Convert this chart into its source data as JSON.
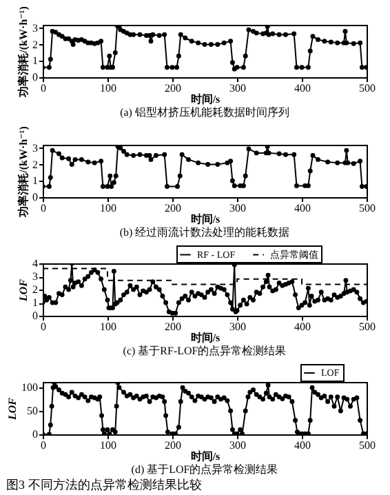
{
  "chart_data": [
    {
      "type": "line",
      "title": "(a) 铝型材挤压机能耗数据时间序列",
      "xlabel": "时间/s",
      "ylabel": "功率消耗/(kW·h⁻¹)",
      "xlim": [
        0,
        500
      ],
      "xticks": [
        0,
        100,
        200,
        300,
        400,
        500
      ],
      "ylim": [
        0,
        3.2
      ],
      "yticks": [
        0,
        1,
        2,
        3
      ],
      "marker": "circle",
      "color": "#000000",
      "x": [
        0,
        10,
        12,
        15,
        20,
        25,
        30,
        35,
        40,
        45,
        47,
        50,
        55,
        60,
        65,
        70,
        75,
        80,
        85,
        90,
        93,
        100,
        103,
        105,
        108,
        112,
        115,
        118,
        120,
        125,
        130,
        135,
        140,
        150,
        160,
        165,
        167,
        170,
        180,
        188,
        192,
        200,
        207,
        210,
        213,
        220,
        230,
        240,
        250,
        260,
        270,
        280,
        290,
        293,
        296,
        300,
        310,
        313,
        318,
        325,
        330,
        340,
        345,
        347,
        349,
        355,
        365,
        375,
        388,
        392,
        400,
        410,
        413,
        417,
        425,
        435,
        445,
        455,
        465,
        467,
        469,
        480,
        490,
        493,
        500
      ],
      "values": [
        0.6,
        0.6,
        1.1,
        2.8,
        2.75,
        2.6,
        2.5,
        2.35,
        2.35,
        2.2,
        2.0,
        2.3,
        2.25,
        2.3,
        2.2,
        2.1,
        2.1,
        2.05,
        2.1,
        2.2,
        0.6,
        0.6,
        1.3,
        0.6,
        0.6,
        1.5,
        3.15,
        3.1,
        2.9,
        2.8,
        2.7,
        2.6,
        2.6,
        2.6,
        2.55,
        2.55,
        2.2,
        2.6,
        2.55,
        2.6,
        0.6,
        0.6,
        0.6,
        1.3,
        2.6,
        2.4,
        2.2,
        2.1,
        2.0,
        2.0,
        2.0,
        2.1,
        2.2,
        0.9,
        0.5,
        0.6,
        0.6,
        1.3,
        2.9,
        2.8,
        2.7,
        2.65,
        2.7,
        3.1,
        2.6,
        2.65,
        2.6,
        2.6,
        2.65,
        0.6,
        0.6,
        0.6,
        1.6,
        2.5,
        2.3,
        2.2,
        2.15,
        2.1,
        2.1,
        2.8,
        2.1,
        2.05,
        2.1,
        0.6,
        0.6
      ]
    },
    {
      "type": "line",
      "title": "(b) 经过雨流计数法处理的能耗数据",
      "xlabel": "时间/s",
      "ylabel": "功率消耗/(kW·h⁻¹)",
      "xlim": [
        0,
        500
      ],
      "xticks": [
        0,
        100,
        200,
        300,
        400,
        500
      ],
      "ylim": [
        0,
        3.2
      ],
      "yticks": [
        0,
        1,
        2,
        3
      ],
      "marker": "circle",
      "color": "#000000",
      "x": [
        0,
        10,
        12,
        15,
        25,
        30,
        40,
        45,
        50,
        60,
        70,
        80,
        90,
        93,
        100,
        104,
        106,
        110,
        113,
        116,
        120,
        125,
        130,
        140,
        150,
        160,
        165,
        167,
        175,
        188,
        192,
        208,
        212,
        215,
        225,
        240,
        255,
        270,
        285,
        290,
        293,
        296,
        305,
        310,
        313,
        318,
        330,
        345,
        347,
        349,
        365,
        375,
        388,
        392,
        405,
        410,
        413,
        417,
        425,
        440,
        455,
        467,
        469,
        471,
        480,
        490,
        493,
        500
      ],
      "values": [
        0.65,
        0.65,
        1.2,
        2.85,
        2.65,
        2.4,
        2.35,
        2.0,
        2.3,
        2.3,
        2.15,
        2.1,
        2.2,
        0.65,
        0.65,
        1.3,
        0.65,
        0.9,
        1.3,
        3.1,
        3.0,
        2.8,
        2.6,
        2.55,
        2.6,
        2.55,
        2.55,
        2.3,
        2.55,
        2.6,
        0.65,
        0.65,
        1.3,
        2.6,
        2.3,
        2.1,
        2.0,
        2.0,
        2.1,
        2.2,
        1.0,
        0.7,
        0.7,
        0.7,
        1.3,
        2.95,
        2.7,
        2.7,
        3.1,
        2.7,
        2.65,
        2.6,
        2.6,
        0.7,
        0.7,
        0.7,
        1.6,
        2.55,
        2.3,
        2.15,
        2.1,
        2.1,
        2.85,
        2.1,
        2.05,
        2.2,
        0.65,
        0.65
      ]
    },
    {
      "type": "line",
      "title": "(c) 基于RF-LOF的点异常检测结果",
      "xlabel": "时间/s",
      "ylabel": "LOF",
      "xlim": [
        0,
        500
      ],
      "xticks": [
        0,
        100,
        200,
        300,
        400,
        500
      ],
      "ylim": [
        0,
        4
      ],
      "yticks": [
        0,
        1,
        2,
        3,
        4
      ],
      "legend": "top right",
      "series": [
        {
          "name": "RF - LOF",
          "color": "#000000",
          "marker": "circle",
          "x": [
            0,
            3,
            6,
            10,
            15,
            20,
            25,
            30,
            35,
            40,
            43,
            45,
            47,
            50,
            55,
            60,
            65,
            70,
            75,
            80,
            85,
            90,
            95,
            100,
            102,
            105,
            108,
            110,
            112,
            115,
            120,
            125,
            130,
            135,
            140,
            145,
            150,
            155,
            160,
            165,
            170,
            175,
            180,
            185,
            190,
            195,
            200,
            205,
            210,
            215,
            220,
            225,
            230,
            235,
            240,
            245,
            250,
            255,
            260,
            265,
            270,
            275,
            280,
            285,
            290,
            293,
            296,
            298,
            300,
            305,
            310,
            315,
            320,
            325,
            330,
            335,
            340,
            345,
            348,
            350,
            355,
            360,
            365,
            370,
            375,
            380,
            385,
            390,
            395,
            400,
            405,
            410,
            412,
            415,
            420,
            425,
            430,
            435,
            440,
            445,
            450,
            455,
            460,
            465,
            468,
            470,
            475,
            480,
            485,
            490,
            495,
            500
          ],
          "values": [
            1.0,
            1.5,
            1.2,
            1.4,
            1.0,
            1.0,
            1.7,
            1.6,
            2.2,
            2.0,
            2.7,
            4.0,
            2.2,
            2.5,
            2.6,
            2.3,
            2.8,
            3.0,
            3.3,
            3.5,
            3.3,
            2.8,
            2.0,
            1.2,
            0.6,
            0.6,
            0.6,
            3.4,
            0.9,
            1.0,
            1.2,
            1.6,
            1.8,
            2.3,
            2.0,
            2.2,
            1.6,
            1.9,
            1.8,
            2.0,
            2.6,
            2.2,
            2.0,
            1.5,
            1.0,
            0.3,
            0.2,
            0.2,
            1.0,
            1.3,
            1.5,
            1.2,
            1.8,
            1.5,
            1.7,
            1.6,
            1.4,
            1.8,
            2.0,
            1.7,
            2.2,
            2.1,
            2.0,
            1.6,
            1.0,
            0.5,
            3.9,
            0.3,
            0.4,
            0.8,
            1.2,
            0.9,
            1.4,
            1.2,
            1.8,
            1.7,
            2.2,
            2.6,
            3.1,
            2.2,
            1.9,
            2.0,
            2.5,
            2.3,
            2.4,
            2.5,
            2.6,
            1.6,
            0.6,
            0.8,
            1.0,
            2.1,
            0.8,
            1.5,
            1.1,
            1.2,
            1.8,
            1.2,
            1.3,
            1.2,
            1.6,
            1.4,
            1.5,
            1.7,
            2.7,
            1.8,
            1.9,
            2.0,
            1.8,
            1.3,
            1.0,
            1.1
          ]
        },
        {
          "name": "点异常阈值",
          "type": "step",
          "color": "#000000",
          "line_style": "dashed",
          "x": [
            0,
            100,
            200,
            300,
            400,
            500
          ],
          "values": [
            3.6,
            2.7,
            2.4,
            2.8,
            2.4,
            2.4
          ]
        }
      ]
    },
    {
      "type": "line",
      "title": "(d) 基于LOF的点异常检测结果",
      "xlabel": "时间/s",
      "ylabel": "LOF",
      "xlim": [
        0,
        500
      ],
      "xticks": [
        0,
        100,
        200,
        300,
        400,
        500
      ],
      "ylim": [
        0,
        112
      ],
      "yticks": [
        0,
        50,
        100
      ],
      "legend": "top right",
      "annotations": [
        "图3 不同方法的点异常检测结果比较"
      ],
      "series": [
        {
          "name": "LOF",
          "color": "#000000",
          "marker": "circle",
          "x": [
            0,
            10,
            12,
            14,
            16,
            18,
            20,
            25,
            30,
            35,
            40,
            45,
            50,
            55,
            60,
            65,
            70,
            75,
            80,
            85,
            88,
            91,
            93,
            95,
            100,
            103,
            108,
            112,
            114,
            116,
            118,
            125,
            130,
            135,
            140,
            145,
            150,
            155,
            160,
            165,
            170,
            175,
            180,
            185,
            188,
            190,
            193,
            200,
            205,
            210,
            213,
            216,
            220,
            225,
            230,
            235,
            240,
            245,
            250,
            255,
            260,
            265,
            270,
            275,
            280,
            285,
            290,
            293,
            296,
            300,
            305,
            308,
            313,
            317,
            320,
            325,
            330,
            335,
            340,
            345,
            348,
            350,
            355,
            360,
            365,
            370,
            375,
            380,
            385,
            390,
            393,
            396,
            400,
            405,
            410,
            413,
            416,
            420,
            425,
            430,
            435,
            440,
            445,
            450,
            455,
            460,
            465,
            470,
            475,
            480,
            485,
            490,
            495,
            500
          ],
          "values": [
            0,
            0,
            20,
            60,
            100,
            110,
            102,
            95,
            88,
            85,
            80,
            90,
            82,
            78,
            85,
            80,
            72,
            80,
            78,
            75,
            80,
            40,
            10,
            1,
            10,
            1,
            10,
            5,
            60,
            110,
            100,
            90,
            82,
            85,
            78,
            82,
            75,
            80,
            82,
            70,
            80,
            78,
            82,
            80,
            70,
            40,
            5,
            1,
            1,
            15,
            70,
            100,
            92,
            88,
            80,
            72,
            82,
            80,
            75,
            80,
            78,
            70,
            80,
            75,
            78,
            72,
            50,
            10,
            1,
            1,
            10,
            1,
            50,
            80,
            90,
            95,
            85,
            80,
            75,
            88,
            105,
            80,
            75,
            85,
            80,
            76,
            82,
            80,
            70,
            30,
            5,
            1,
            1,
            1,
            1,
            30,
            100,
            90,
            85,
            78,
            82,
            70,
            80,
            60,
            80,
            50,
            78,
            75,
            60,
            75,
            78,
            30,
            1,
            1
          ]
        }
      ]
    }
  ]
}
